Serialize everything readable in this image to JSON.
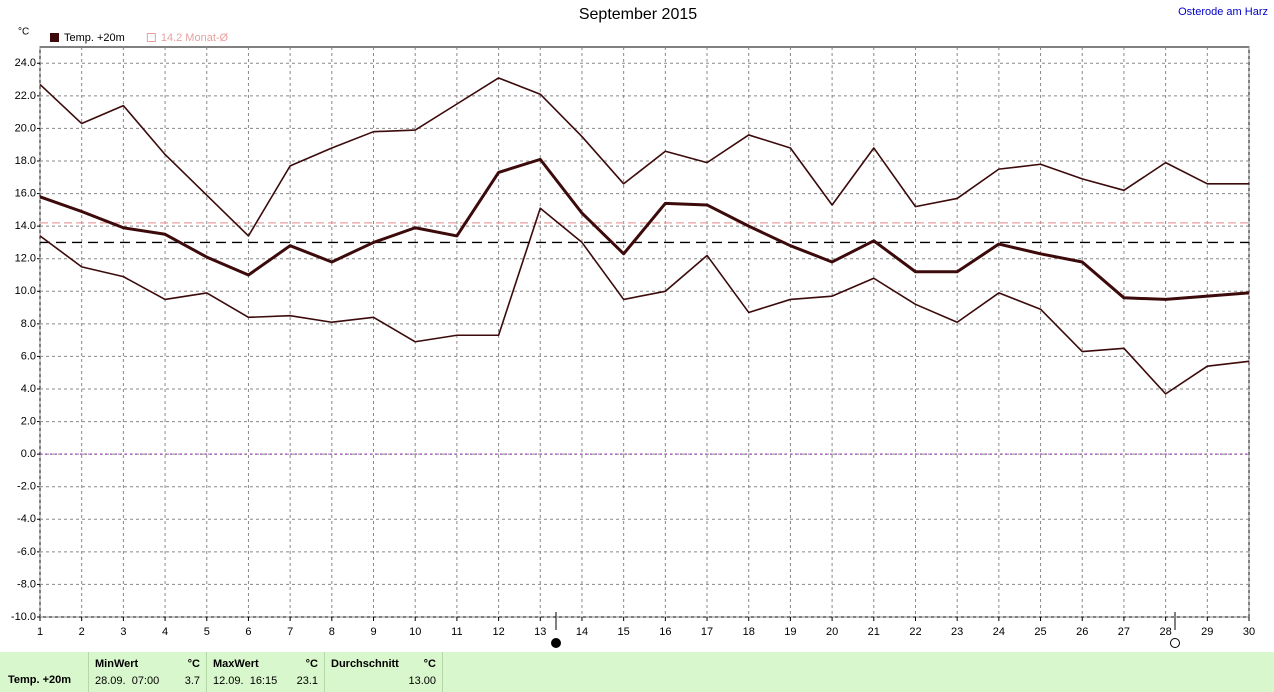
{
  "chart_data": {
    "type": "line",
    "title": "September 2015",
    "unit": "°C",
    "location": "Osterode am Harz",
    "x": [
      1,
      2,
      3,
      4,
      5,
      6,
      7,
      8,
      9,
      10,
      11,
      12,
      13,
      14,
      15,
      16,
      17,
      18,
      19,
      20,
      21,
      22,
      23,
      24,
      25,
      26,
      27,
      28,
      29,
      30
    ],
    "series": [
      {
        "color": "#3c0a0a",
        "width": 1.6,
        "values": [
          22.7,
          20.3,
          21.4,
          18.4,
          15.9,
          13.4,
          17.7,
          18.8,
          19.8,
          19.9,
          21.5,
          23.1,
          22.1,
          19.5,
          16.6,
          18.6,
          17.9,
          19.6,
          18.8,
          15.3,
          18.8,
          15.2,
          15.7,
          17.5,
          17.8,
          16.9,
          16.2,
          17.9,
          16.6,
          16.6
        ]
      },
      {
        "name": "Temp. +20m",
        "color": "#3c0a0a",
        "width": 3,
        "values": [
          15.8,
          14.9,
          13.9,
          13.5,
          12.1,
          11.0,
          12.8,
          11.8,
          13.0,
          13.9,
          13.4,
          17.3,
          18.1,
          14.8,
          12.3,
          15.4,
          15.3,
          14.0,
          12.8,
          11.8,
          13.1,
          11.2,
          11.2,
          12.9,
          12.3,
          11.8,
          9.6,
          9.5,
          9.7,
          9.9
        ]
      },
      {
        "color": "#3c0a0a",
        "width": 1.6,
        "values": [
          13.4,
          11.5,
          10.9,
          9.5,
          9.9,
          8.4,
          8.5,
          8.1,
          8.4,
          6.9,
          7.3,
          7.3,
          15.1,
          13.0,
          9.5,
          10.0,
          12.2,
          8.7,
          9.5,
          9.7,
          10.8,
          9.2,
          8.1,
          9.9,
          8.9,
          6.3,
          6.5,
          3.7,
          5.4,
          5.7
        ]
      }
    ],
    "reference_lines": [
      {
        "name": "14.2 Monat-Ø",
        "value": 14.2,
        "color": "#e8a0a0",
        "dash": "8 4"
      },
      {
        "value": 13.0,
        "color": "#000000",
        "dash": "10 6"
      },
      {
        "value": 0,
        "color": "#a040c0",
        "dash": "2 3"
      }
    ],
    "xlim": [
      1,
      30
    ],
    "ylim": [
      -10,
      25
    ],
    "xticks": [
      1,
      2,
      3,
      4,
      5,
      6,
      7,
      8,
      9,
      10,
      11,
      12,
      13,
      14,
      15,
      16,
      17,
      18,
      19,
      20,
      21,
      22,
      23,
      24,
      25,
      26,
      27,
      28,
      29,
      30
    ],
    "yticks": [
      {
        "value": 24,
        "label": "24.0"
      },
      {
        "value": 22,
        "label": "22.0"
      },
      {
        "value": 20,
        "label": "20.0"
      },
      {
        "value": 18,
        "label": "18.0"
      },
      {
        "value": 16,
        "label": "16.0"
      },
      {
        "value": 14,
        "label": "14.0"
      },
      {
        "value": 12,
        "label": "12.0"
      },
      {
        "value": 10,
        "label": "10.0"
      },
      {
        "value": 8,
        "label": "8.0"
      },
      {
        "value": 6,
        "label": "6.0"
      },
      {
        "value": 4,
        "label": "4.0"
      },
      {
        "value": 2,
        "label": "2.0"
      },
      {
        "value": 0,
        "label": "0.0"
      },
      {
        "value": -2,
        "label": "-2.0"
      },
      {
        "value": -4,
        "label": "-4.0"
      },
      {
        "value": -6,
        "label": "-6.0"
      },
      {
        "value": -8,
        "label": "-8.0"
      },
      {
        "value": -10,
        "label": "-10.0"
      }
    ],
    "grid": true
  },
  "footer": {
    "label": "Temp. +20m",
    "min": {
      "title": "MinWert",
      "unit": "°C",
      "time": "28.09.  07:00",
      "value": "3.7"
    },
    "max": {
      "title": "MaxWert",
      "unit": "°C",
      "time": "12.09.  16:15",
      "value": "23.1"
    },
    "avg": {
      "title": "Durchschnitt",
      "unit": "°C",
      "value": "13.00"
    }
  }
}
